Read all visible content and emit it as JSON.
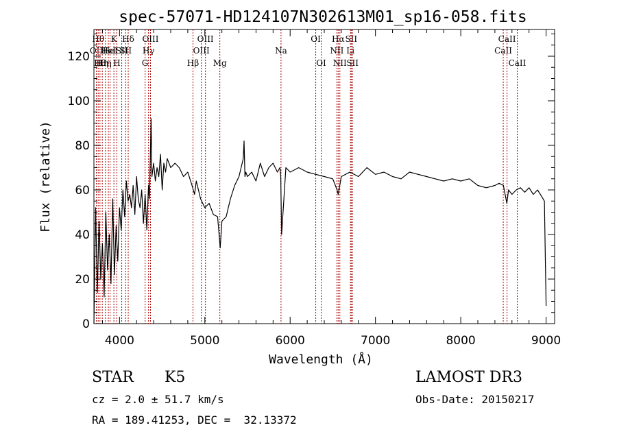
{
  "chart_data": {
    "type": "line",
    "title": "spec-57071-HD124107N302613M01_sp16-058.fits",
    "xlabel": "Wavelength (Å)",
    "ylabel": "Flux (relative)",
    "xlim": [
      3700,
      9100
    ],
    "ylim": [
      0,
      132
    ],
    "xticks": [
      {
        "value": 4000,
        "label": "4000"
      },
      {
        "value": 5000,
        "label": "5000"
      },
      {
        "value": 6000,
        "label": "6000"
      },
      {
        "value": 7000,
        "label": "7000"
      },
      {
        "value": 8000,
        "label": "8000"
      },
      {
        "value": 9000,
        "label": "9000"
      }
    ],
    "yticks": [
      {
        "value": 0,
        "label": "0"
      },
      {
        "value": 20,
        "label": "20"
      },
      {
        "value": 40,
        "label": "40"
      },
      {
        "value": 60,
        "label": "60"
      },
      {
        "value": 80,
        "label": "80"
      },
      {
        "value": 100,
        "label": "100"
      },
      {
        "value": 120,
        "label": "120"
      }
    ],
    "series": [
      {
        "name": "flux",
        "color": "#000000",
        "x": [
          3700,
          3720,
          3740,
          3760,
          3780,
          3800,
          3820,
          3840,
          3860,
          3880,
          3900,
          3920,
          3940,
          3960,
          3980,
          4000,
          4020,
          4040,
          4060,
          4080,
          4100,
          4120,
          4140,
          4160,
          4180,
          4200,
          4220,
          4240,
          4260,
          4280,
          4300,
          4320,
          4340,
          4350,
          4360,
          4370,
          4380,
          4400,
          4420,
          4440,
          4460,
          4480,
          4500,
          4520,
          4540,
          4560,
          4600,
          4650,
          4700,
          4750,
          4800,
          4850,
          4880,
          4900,
          4950,
          5000,
          5050,
          5100,
          5150,
          5180,
          5200,
          5250,
          5300,
          5350,
          5400,
          5450,
          5460,
          5470,
          5480,
          5500,
          5550,
          5600,
          5650,
          5700,
          5750,
          5800,
          5850,
          5880,
          5890,
          5900,
          5950,
          6000,
          6100,
          6200,
          6300,
          6400,
          6500,
          6550,
          6563,
          6600,
          6700,
          6800,
          6900,
          7000,
          7100,
          7200,
          7300,
          7400,
          7500,
          7600,
          7700,
          7800,
          7900,
          8000,
          8100,
          8200,
          8300,
          8400,
          8450,
          8500,
          8540,
          8560,
          8600,
          8650,
          8700,
          8750,
          8800,
          8850,
          8900,
          8950,
          8980,
          9000
        ],
        "y": [
          0,
          52,
          14,
          46,
          20,
          36,
          12,
          50,
          24,
          40,
          18,
          56,
          22,
          44,
          28,
          52,
          42,
          60,
          48,
          64,
          55,
          58,
          52,
          62,
          49,
          66,
          56,
          52,
          60,
          45,
          58,
          42,
          62,
          56,
          72,
          92,
          66,
          72,
          64,
          70,
          66,
          76,
          60,
          72,
          68,
          74,
          70,
          72,
          70,
          66,
          68,
          62,
          58,
          64,
          56,
          52,
          54,
          49,
          48,
          34,
          46,
          48,
          56,
          62,
          66,
          74,
          82,
          66,
          68,
          66,
          68,
          64,
          72,
          66,
          70,
          72,
          68,
          70,
          66,
          40,
          70,
          68,
          70,
          68,
          67,
          66,
          65,
          60,
          58,
          66,
          68,
          66,
          70,
          67,
          68,
          66,
          65,
          68,
          67,
          66,
          65,
          64,
          65,
          64,
          65,
          62,
          61,
          62,
          63,
          62,
          54,
          60,
          58,
          60,
          61,
          59,
          61,
          58,
          60,
          57,
          55,
          8
        ]
      }
    ],
    "lines": [
      {
        "x": 3728,
        "label": "OII",
        "row": 2
      },
      {
        "x": 3750,
        "label": "Hθ",
        "row": 1
      },
      {
        "x": 3771,
        "label": "Hθ",
        "row": 3
      },
      {
        "x": 3798,
        "label": "Hη",
        "row": 3
      },
      {
        "x": 3835,
        "label": "Hη",
        "row": 3
      },
      {
        "x": 3869,
        "label": "Hel",
        "row": 2
      },
      {
        "x": 3889,
        "label": "Hel",
        "row": 2
      },
      {
        "x": 3934,
        "label": "K",
        "row": 1
      },
      {
        "x": 3969,
        "label": "H",
        "row": 3
      },
      {
        "x": 4026,
        "label": "SII",
        "row": 2
      },
      {
        "x": 4072,
        "label": "SII",
        "row": 2
      },
      {
        "x": 4102,
        "label": "Hδ",
        "row": 1
      },
      {
        "x": 4300,
        "label": "G",
        "row": 3
      },
      {
        "x": 4340,
        "label": "Hγ",
        "row": 2
      },
      {
        "x": 4363,
        "label": "OIII",
        "row": 1
      },
      {
        "x": 4861,
        "label": "Hβ",
        "row": 3
      },
      {
        "x": 4959,
        "label": "OIII",
        "row": 2
      },
      {
        "x": 5007,
        "label": "OIII",
        "row": 1
      },
      {
        "x": 5176,
        "label": "Mg",
        "row": 3
      },
      {
        "x": 5893,
        "label": "Na",
        "row": 2
      },
      {
        "x": 6300,
        "label": "OI",
        "row": 1
      },
      {
        "x": 6364,
        "label": "OI",
        "row": 3
      },
      {
        "x": 6548,
        "label": "NII",
        "row": 2
      },
      {
        "x": 6563,
        "label": "Hα",
        "row": 1
      },
      {
        "x": 6583,
        "label": "NII",
        "row": 3
      },
      {
        "x": 6707,
        "label": "Li",
        "row": 2
      },
      {
        "x": 6716,
        "label": "SII",
        "row": 1
      },
      {
        "x": 6731,
        "label": "SII",
        "row": 3
      },
      {
        "x": 8498,
        "label": "CaII",
        "row": 2
      },
      {
        "x": 8542,
        "label": "CaII",
        "row": 1
      },
      {
        "x": 8662,
        "label": "CaII",
        "row": 3
      }
    ]
  },
  "info": {
    "object_class": "STAR",
    "subclass": "K5",
    "survey": "LAMOST DR3",
    "cz": "cz = 2.0 ± 51.7 km/s",
    "obs_date": "Obs-Date: 20150217",
    "coords": "RA = 189.41253, DEC =  32.13372"
  }
}
